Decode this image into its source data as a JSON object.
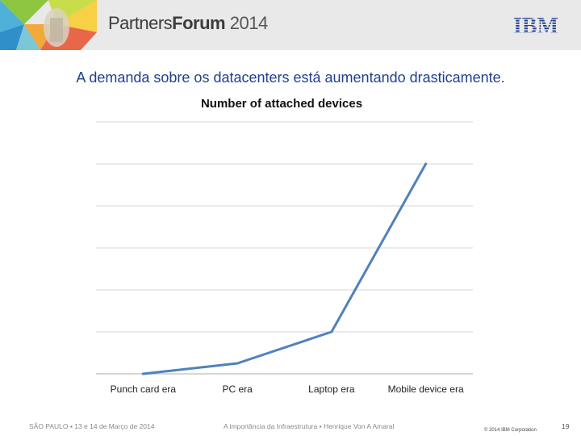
{
  "header": {
    "brand_partners": "Partners",
    "brand_forum": "Forum",
    "brand_year": "2014",
    "ibm_logo": "IBM",
    "colors": {
      "background": "#e9e9e9",
      "ibm": "#1f3f8f"
    }
  },
  "slide": {
    "headline": "A demanda sobre os datacenters está aumentando drasticamente."
  },
  "chart_data": {
    "type": "line",
    "title": "Number of attached devices",
    "categories": [
      "Punch card era",
      "PC era",
      "Laptop era",
      "Mobile device era"
    ],
    "series": [
      {
        "values": [
          0.0,
          0.25,
          1.0,
          5.0
        ],
        "color": "#4f81bd"
      }
    ],
    "ylim": [
      0,
      6
    ],
    "grid": true,
    "y_tick_labels_shown": false,
    "legend": "none"
  },
  "footer": {
    "event": "SÃO PAULO  ▪  13 e 14 de Março de 2014",
    "talk": "A importância da Infraestrutura ▪ Henrique Von A Amaral",
    "copyright": "© 2014 IBM Corporation",
    "page": "19"
  }
}
